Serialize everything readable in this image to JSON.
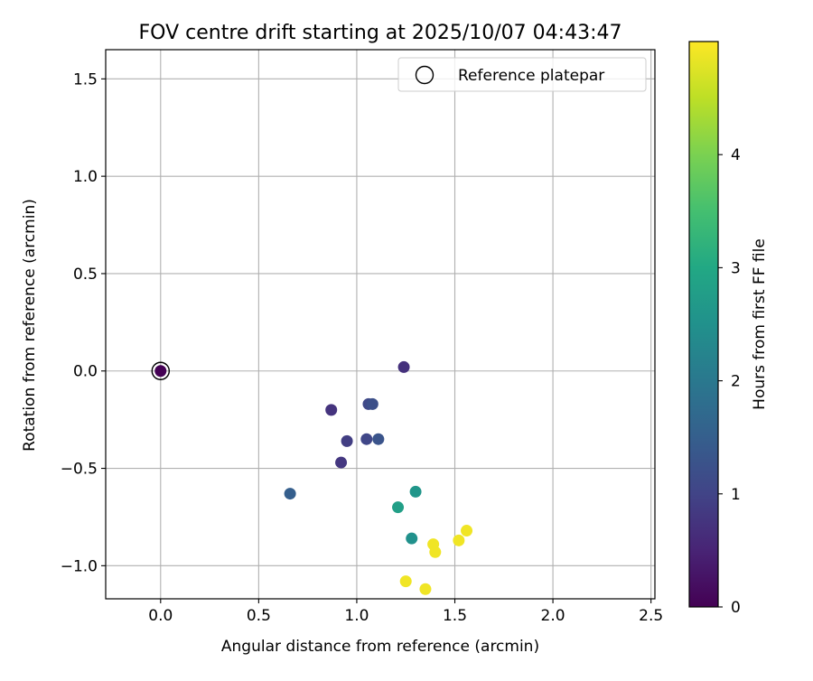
{
  "chart_data": {
    "type": "scatter",
    "title": "FOV centre drift starting at 2025/10/07 04:43:47",
    "xlabel": "Angular distance from reference (arcmin)",
    "ylabel": "Rotation from reference (arcmin)",
    "xlim": [
      -0.28,
      2.52
    ],
    "ylim": [
      -1.17,
      1.65
    ],
    "xticks": [
      0.0,
      0.5,
      1.0,
      1.5,
      2.0,
      2.5
    ],
    "xtick_labels": [
      "0.0",
      "0.5",
      "1.0",
      "1.5",
      "2.0",
      "2.5"
    ],
    "yticks": [
      -1.0,
      -0.5,
      0.0,
      0.5,
      1.0,
      1.5
    ],
    "ytick_labels": [
      "−1.0",
      "−0.5",
      "0.0",
      "0.5",
      "1.0",
      "1.5"
    ],
    "grid": true,
    "legend": {
      "position": "top-right",
      "entries": [
        {
          "label": "Reference platepar",
          "marker": "open-circle"
        }
      ]
    },
    "reference_point": {
      "x": 0.0,
      "y": 0.0
    },
    "colorbar": {
      "label": "Hours from first FF file",
      "colormap": "viridis",
      "range": [
        0,
        5
      ],
      "ticks": [
        0,
        1,
        2,
        3,
        4
      ],
      "tick_labels": [
        "0",
        "1",
        "2",
        "3",
        "4"
      ]
    },
    "points": [
      {
        "x": 0.0,
        "y": 0.0,
        "hours": 0.0
      },
      {
        "x": 1.24,
        "y": 0.02,
        "hours": 0.7
      },
      {
        "x": 0.87,
        "y": -0.2,
        "hours": 0.75
      },
      {
        "x": 0.92,
        "y": -0.47,
        "hours": 0.8
      },
      {
        "x": 0.95,
        "y": -0.36,
        "hours": 0.9
      },
      {
        "x": 1.05,
        "y": -0.35,
        "hours": 1.05
      },
      {
        "x": 1.06,
        "y": -0.17,
        "hours": 1.1
      },
      {
        "x": 1.08,
        "y": -0.17,
        "hours": 1.2
      },
      {
        "x": 1.11,
        "y": -0.35,
        "hours": 1.3
      },
      {
        "x": 0.66,
        "y": -0.63,
        "hours": 1.5
      },
      {
        "x": 1.3,
        "y": -0.62,
        "hours": 2.6
      },
      {
        "x": 1.21,
        "y": -0.7,
        "hours": 2.8
      },
      {
        "x": 1.28,
        "y": -0.86,
        "hours": 2.5
      },
      {
        "x": 1.39,
        "y": -0.89,
        "hours": 4.9
      },
      {
        "x": 1.4,
        "y": -0.93,
        "hours": 4.9
      },
      {
        "x": 1.52,
        "y": -0.87,
        "hours": 4.9
      },
      {
        "x": 1.56,
        "y": -0.82,
        "hours": 4.9
      },
      {
        "x": 1.25,
        "y": -1.08,
        "hours": 4.9
      },
      {
        "x": 1.35,
        "y": -1.12,
        "hours": 4.9
      }
    ]
  }
}
